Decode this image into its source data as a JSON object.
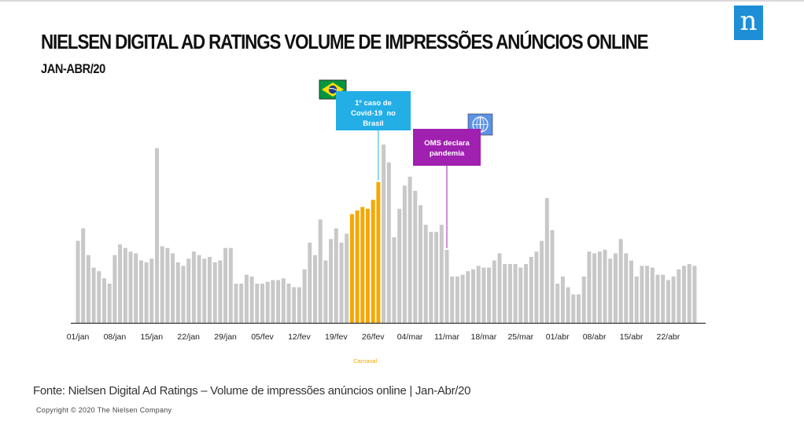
{
  "header": {
    "title": "NIELSEN DIGITAL AD RATINGS VOLUME DE IMPRESSÕES ANÚNCIOS ONLINE",
    "subtitle": "JAN-ABR/20",
    "logo": "n"
  },
  "colors": {
    "bar": "#c8c8c8",
    "highlight": "#f5a800",
    "covid_box": "#23aee6",
    "who_box": "#a020b0",
    "axis": "#333333"
  },
  "icons": {
    "brazil": "brazil-flag-icon",
    "who": "who-emblem-icon"
  },
  "annotations": {
    "covid": {
      "line1": "1º caso de",
      "line2": "Covid-19  no",
      "line3": "Brasil"
    },
    "who": {
      "line1": "OMS declara",
      "line2": "pandemia"
    },
    "carnaval": "Carnaval"
  },
  "chart_data": {
    "type": "bar",
    "x_tick_labels": [
      "01/jan",
      "08/jan",
      "15/jan",
      "22/jan",
      "29/jan",
      "05/fev",
      "12/fev",
      "19/fev",
      "26/fev",
      "04/mar",
      "11/mar",
      "18/mar",
      "25/mar",
      "01/abr",
      "08/abr",
      "15/abr",
      "22/abr"
    ],
    "x_tick_bar_index": [
      0,
      7,
      14,
      21,
      28,
      35,
      42,
      49,
      56,
      63,
      70,
      77,
      84,
      91,
      98,
      105,
      112
    ],
    "highlight_range": [
      52,
      57
    ],
    "highlight_label": "Carnaval",
    "covid_bar_index": 57,
    "who_bar_index": 70,
    "ylim": [
      0,
      100
    ],
    "values": [
      46,
      53,
      38,
      31,
      29,
      25,
      22,
      38,
      44,
      42,
      40,
      39,
      35,
      34,
      36,
      98,
      43,
      42,
      39,
      34,
      32,
      36,
      40,
      38,
      36,
      37,
      34,
      35,
      42,
      42,
      22,
      22,
      27,
      26,
      22,
      22,
      23,
      24,
      24,
      25,
      22,
      20,
      20,
      30,
      45,
      38,
      58,
      35,
      47,
      53,
      45,
      50,
      61,
      63,
      65,
      64,
      69,
      79,
      100,
      90,
      48,
      64,
      77,
      82,
      74,
      66,
      55,
      51,
      51,
      55,
      41,
      26,
      26,
      27,
      29,
      30,
      32,
      31,
      31,
      35,
      39,
      33,
      33,
      33,
      31,
      33,
      37,
      40,
      46,
      70,
      52,
      22,
      26,
      20,
      16,
      16,
      26,
      40,
      39,
      40,
      41,
      36,
      39,
      47,
      39,
      35,
      26,
      32,
      32,
      31,
      27,
      27,
      24,
      26,
      30,
      32,
      33,
      32
    ]
  },
  "footer": {
    "source": "Fonte: Nielsen Digital Ad Ratings – Volume de impressões anúncios online | Jan-Abr/20",
    "copyright": "Copyright © 2020 The Nielsen Company"
  }
}
